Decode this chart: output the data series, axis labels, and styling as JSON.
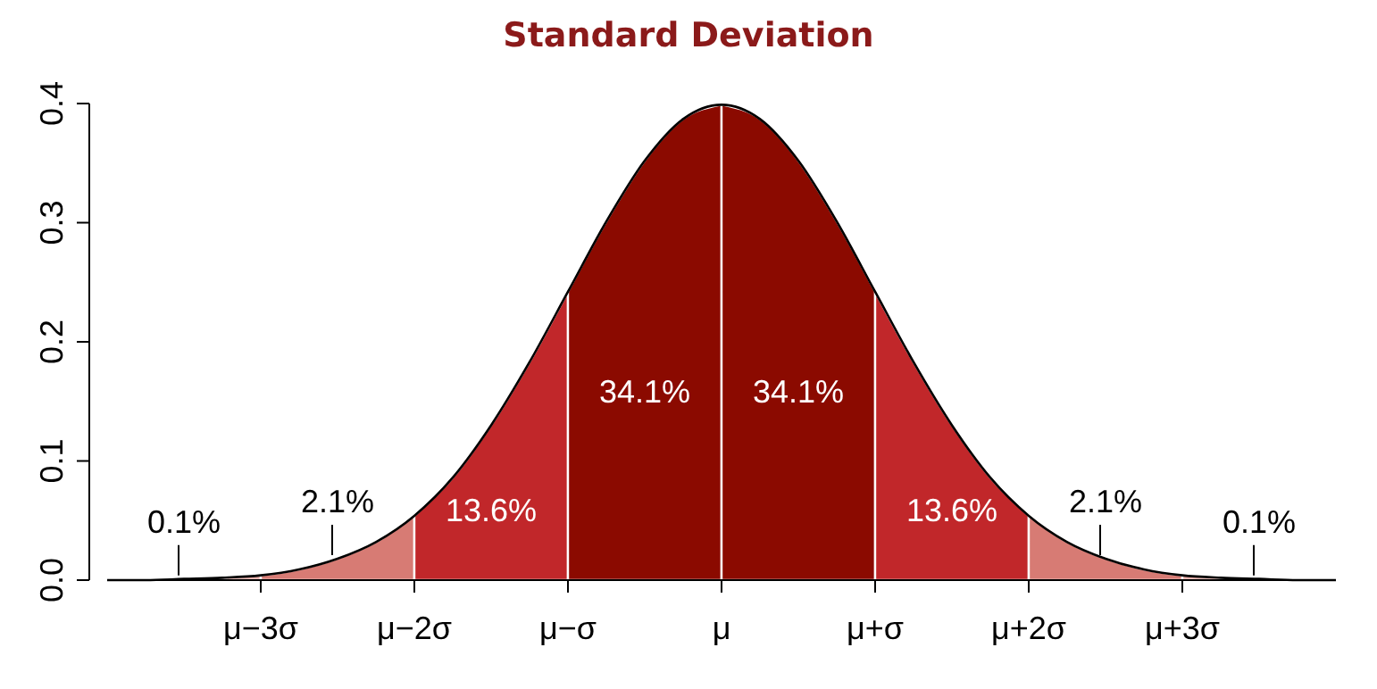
{
  "chart_data": {
    "type": "area",
    "title": "Standard Deviation",
    "ylim": [
      0,
      0.4
    ],
    "categories": [
      null,
      null,
      null,
      null,
      "μ−3σ",
      null,
      null,
      null,
      "μ−2σ",
      null,
      null,
      null,
      "μ−σ",
      null,
      null,
      null,
      "μ",
      null,
      null,
      null,
      "μ+σ",
      null,
      null,
      null,
      "μ+2σ",
      null,
      null,
      null,
      "μ+3σ",
      null,
      null,
      null,
      null
    ],
    "yticks": [
      {
        "value": 0,
        "label": "0.0"
      },
      0.1,
      0.2,
      0.3,
      0.4
    ],
    "series": [
      {
        "color": "#e6aaa5",
        "values": [
          0,
          0,
          0.001,
          0.002,
          0.004,
          null,
          null,
          null,
          null,
          null,
          null,
          null,
          null,
          null,
          null,
          null,
          null,
          null,
          null,
          null,
          null,
          null,
          null,
          null,
          null,
          null,
          null,
          null,
          null,
          null,
          null,
          null,
          null
        ]
      },
      {
        "color": "#d77b74",
        "values": [
          null,
          null,
          null,
          null,
          0.004,
          0.009,
          0.018,
          0.032,
          0.054,
          null,
          null,
          null,
          null,
          null,
          null,
          null,
          null,
          null,
          null,
          null,
          null,
          null,
          null,
          null,
          null,
          null,
          null,
          null,
          null,
          null,
          null,
          null,
          null
        ]
      },
      {
        "color": "#c1272a",
        "values": [
          null,
          null,
          null,
          null,
          null,
          null,
          null,
          null,
          0.054,
          0.086,
          0.13,
          0.183,
          0.242,
          null,
          null,
          null,
          null,
          null,
          null,
          null,
          null,
          null,
          null,
          null,
          null,
          null,
          null,
          null,
          null,
          null,
          null,
          null,
          null
        ]
      },
      {
        "color": "#8b0a00",
        "values": [
          null,
          null,
          null,
          null,
          null,
          null,
          null,
          null,
          null,
          null,
          null,
          null,
          0.242,
          0.301,
          0.352,
          0.387,
          0.399,
          null,
          null,
          null,
          null,
          null,
          null,
          null,
          null,
          null,
          null,
          null,
          null,
          null,
          null,
          null,
          null
        ]
      },
      {
        "color": "#8b0a00",
        "values": [
          null,
          null,
          null,
          null,
          null,
          null,
          null,
          null,
          null,
          null,
          null,
          null,
          null,
          null,
          null,
          null,
          0.399,
          0.387,
          0.352,
          0.301,
          0.242,
          null,
          null,
          null,
          null,
          null,
          null,
          null,
          null,
          null,
          null,
          null,
          null
        ]
      },
      {
        "color": "#c1272a",
        "values": [
          null,
          null,
          null,
          null,
          null,
          null,
          null,
          null,
          null,
          null,
          null,
          null,
          null,
          null,
          null,
          null,
          null,
          null,
          null,
          null,
          0.242,
          0.183,
          0.13,
          0.086,
          0.054,
          null,
          null,
          null,
          null,
          null,
          null,
          null,
          null
        ]
      },
      {
        "color": "#d77b74",
        "values": [
          null,
          null,
          null,
          null,
          null,
          null,
          null,
          null,
          null,
          null,
          null,
          null,
          null,
          null,
          null,
          null,
          null,
          null,
          null,
          null,
          null,
          null,
          null,
          null,
          0.054,
          0.032,
          0.018,
          0.009,
          0.004,
          null,
          null,
          null,
          null
        ]
      },
      {
        "color": "#e6aaa5",
        "values": [
          null,
          null,
          null,
          null,
          null,
          null,
          null,
          null,
          null,
          null,
          null,
          null,
          null,
          null,
          null,
          null,
          null,
          null,
          null,
          null,
          null,
          null,
          null,
          null,
          null,
          null,
          null,
          null,
          0.004,
          0.002,
          0.001,
          0,
          0
        ]
      },
      {
        "type": "line",
        "color": "#000000",
        "values": [
          0,
          0,
          0.001,
          0.002,
          0.004,
          0.009,
          0.018,
          0.032,
          0.054,
          0.086,
          0.13,
          0.183,
          0.242,
          0.301,
          0.352,
          0.387,
          0.399,
          0.387,
          0.352,
          0.301,
          0.242,
          0.183,
          0.13,
          0.086,
          0.054,
          0.032,
          0.018,
          0.009,
          0.004,
          0.002,
          0.001,
          0,
          0
        ]
      }
    ],
    "annotations": [
      "0.1%",
      "2.1%",
      "13.6%",
      "34.1%",
      "34.1%",
      "13.6%",
      "2.1%",
      "0.1%"
    ]
  }
}
